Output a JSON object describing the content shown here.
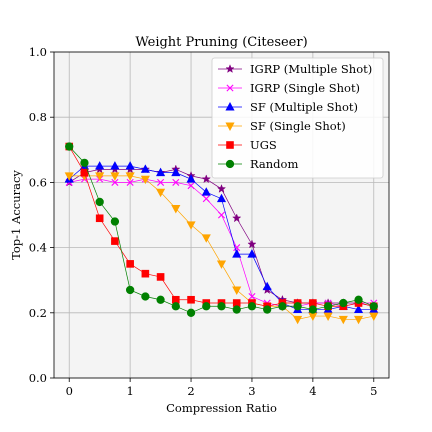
{
  "chart_data": {
    "type": "line",
    "title": "Weight Pruning (Citeseer)",
    "xlabel": "Compression Ratio",
    "ylabel": "Top-1 Accuracy",
    "xlim": [
      -0.25,
      5.25
    ],
    "ylim": [
      0.0,
      1.0
    ],
    "xticks": [
      0,
      1,
      2,
      3,
      4,
      5
    ],
    "xtick_labels": [
      "0",
      "1",
      "2",
      "3",
      "4",
      "5"
    ],
    "yticks": [
      0.0,
      0.2,
      0.4,
      0.6,
      0.8,
      1.0
    ],
    "ytick_labels": [
      "0.0",
      "0.2",
      "0.4",
      "0.6",
      "0.8",
      "1.0"
    ],
    "grid": true,
    "legend_position": "top-right",
    "x": [
      0,
      0.25,
      0.5,
      0.75,
      1.0,
      1.25,
      1.5,
      1.75,
      2.0,
      2.25,
      2.5,
      2.75,
      3.0,
      3.25,
      3.5,
      3.75,
      4.0,
      4.25,
      4.5,
      4.75,
      5.0
    ],
    "series": [
      {
        "name": "IGRP (Multiple Shot)",
        "color": "#800080",
        "marker": "star",
        "values": [
          0.6,
          0.63,
          0.64,
          0.64,
          0.64,
          0.64,
          0.63,
          0.64,
          0.62,
          0.61,
          0.58,
          0.49,
          0.41,
          0.27,
          0.24,
          0.23,
          0.23,
          0.23,
          0.23,
          0.23,
          0.22
        ]
      },
      {
        "name": "IGRP (Single Shot)",
        "color": "#ff00ff",
        "marker": "x",
        "values": [
          0.6,
          0.61,
          0.61,
          0.6,
          0.6,
          0.61,
          0.6,
          0.6,
          0.59,
          0.55,
          0.5,
          0.4,
          0.25,
          0.23,
          0.22,
          0.22,
          0.23,
          0.23,
          0.22,
          0.23,
          0.23
        ]
      },
      {
        "name": "SF (Multiple Shot)",
        "color": "#0000ff",
        "marker": "triangle-up",
        "values": [
          0.61,
          0.65,
          0.65,
          0.65,
          0.65,
          0.64,
          0.63,
          0.63,
          0.61,
          0.57,
          0.55,
          0.38,
          0.38,
          0.28,
          0.23,
          0.21,
          0.21,
          0.21,
          0.22,
          0.21,
          0.21
        ]
      },
      {
        "name": "SF (Single Shot)",
        "color": "#ffa500",
        "marker": "triangle-down",
        "values": [
          0.62,
          0.62,
          0.62,
          0.62,
          0.62,
          0.61,
          0.57,
          0.52,
          0.47,
          0.43,
          0.35,
          0.27,
          0.23,
          0.22,
          0.22,
          0.18,
          0.19,
          0.19,
          0.18,
          0.18,
          0.19
        ]
      },
      {
        "name": "UGS",
        "color": "#ff0000",
        "marker": "square",
        "values": [
          0.71,
          0.63,
          0.49,
          0.42,
          0.35,
          0.32,
          0.31,
          0.24,
          0.24,
          0.23,
          0.23,
          0.23,
          0.23,
          0.22,
          0.23,
          0.23,
          0.23,
          0.22,
          0.22,
          0.23,
          0.22
        ]
      },
      {
        "name": "Random",
        "color": "#008000",
        "marker": "circle",
        "values": [
          0.71,
          0.66,
          0.54,
          0.48,
          0.27,
          0.25,
          0.24,
          0.22,
          0.2,
          0.22,
          0.22,
          0.21,
          0.22,
          0.21,
          0.22,
          0.22,
          0.21,
          0.22,
          0.23,
          0.24,
          0.22
        ]
      }
    ]
  }
}
